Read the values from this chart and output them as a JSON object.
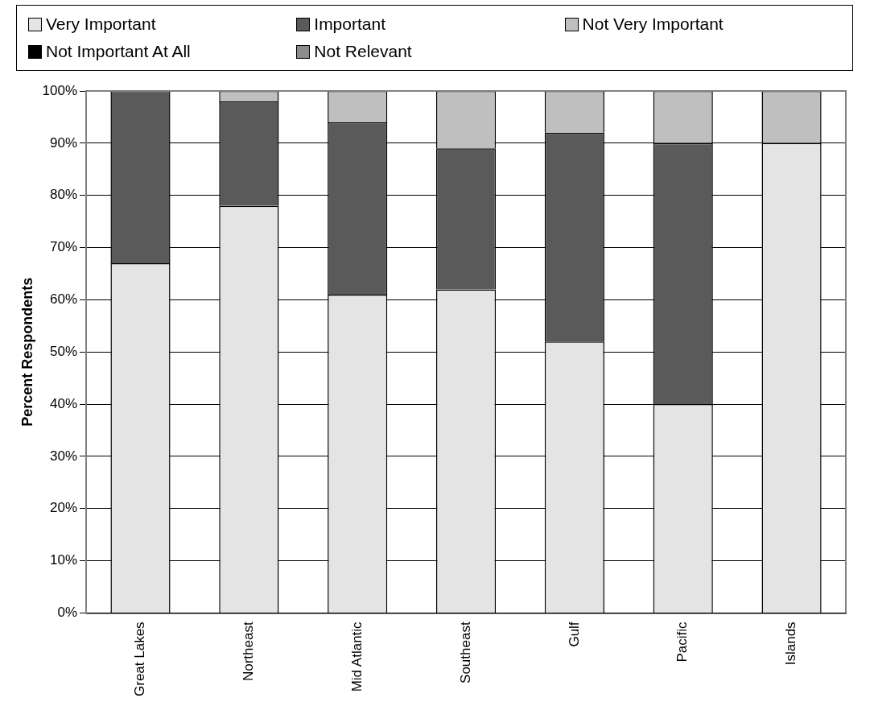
{
  "chart_data": {
    "type": "bar",
    "stacked": true,
    "ylabel": "Percent Respondents",
    "categories": [
      "Great Lakes",
      "Northeast",
      "Mid Atlantic",
      "Southeast",
      "Gulf",
      "Pacific",
      "Islands"
    ],
    "series": [
      {
        "name": "Very Important",
        "color": "#e4e4e4",
        "values": [
          67,
          78,
          61,
          62,
          52,
          40,
          90
        ]
      },
      {
        "name": "Important",
        "color": "#5a5a5a",
        "values": [
          33,
          20,
          33,
          27,
          40,
          50,
          0
        ]
      },
      {
        "name": "Not Very Important",
        "color": "#bfbfbf",
        "values": [
          0,
          2,
          6,
          11,
          8,
          10,
          10
        ]
      },
      {
        "name": "Not Important At All",
        "color": "#000000",
        "values": [
          0,
          0,
          0,
          0,
          0,
          0,
          0
        ]
      },
      {
        "name": "Not Relevant",
        "color": "#8c8c8c",
        "values": [
          0,
          0,
          0,
          0,
          0,
          0,
          0
        ]
      }
    ],
    "ylim": [
      0,
      100
    ],
    "yticks": [
      {
        "value": 0,
        "label": "0%"
      },
      {
        "value": 10,
        "label": "10%"
      },
      {
        "value": 20,
        "label": "20%"
      },
      {
        "value": 30,
        "label": "30%"
      },
      {
        "value": 40,
        "label": "40%"
      },
      {
        "value": 50,
        "label": "50%"
      },
      {
        "value": 60,
        "label": "60%"
      },
      {
        "value": 70,
        "label": "70%"
      },
      {
        "value": 80,
        "label": "80%"
      },
      {
        "value": 90,
        "label": "90%"
      },
      {
        "value": 100,
        "label": "100%"
      }
    ],
    "grid": "y",
    "legend": "top"
  }
}
